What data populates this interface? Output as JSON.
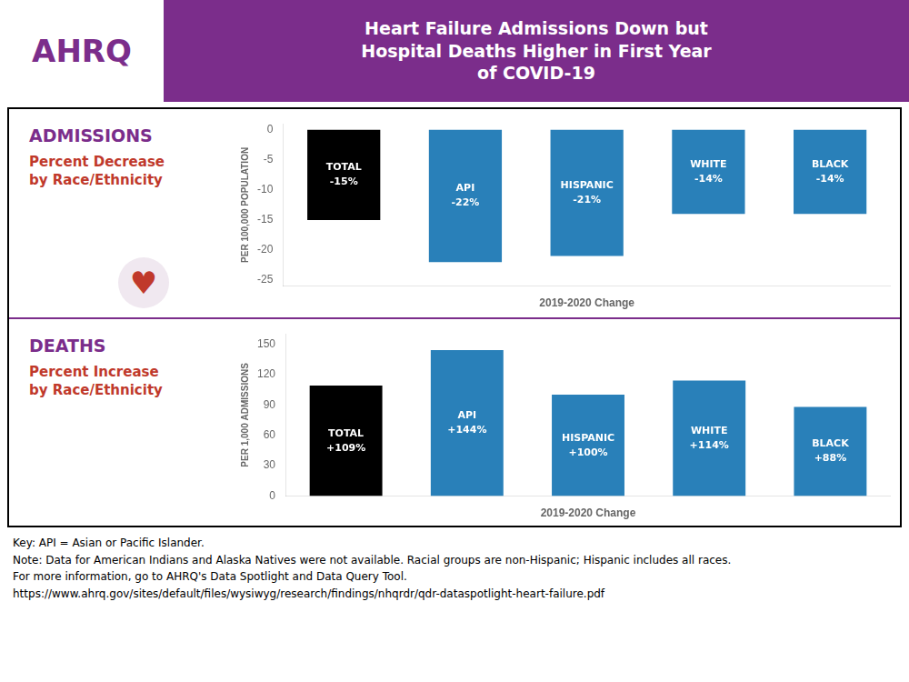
{
  "title": "Heart Failure Admissions Down but\nHospital Deaths Higher in First Year\nof COVID-19",
  "annotations": [
    "AHRQ",
    "♥",
    "Key: API = Asian or Pacific Islander.",
    "Note: Data for American Indians and Alaska Natives were not available. Racial groups are non-Hispanic; Hispanic includes all races.",
    "For more information, go to AHRQ's Data Spotlight and Data Query Tool.",
    "https://www.ahrq.gov/sites/default/files/wysiwyg/research/findings/nhqrdr/qdr-dataspotlight-heart-failure.pdf"
  ],
  "chart_data": [
    {
      "type": "bar",
      "title": "ADMISSIONS",
      "subtitle": [
        "Percent Decrease",
        "by Race/Ethnicity"
      ],
      "categories": [
        "TOTAL",
        "API",
        "HISPANIC",
        "WHITE",
        "BLACK"
      ],
      "values": [
        -15,
        -22,
        -21,
        -14,
        -14
      ],
      "value_labels": [
        "-15%",
        "-22%",
        "-21%",
        "-14%",
        "-14%"
      ],
      "colors": [
        "#000000",
        "#2980B9",
        "#2980B9",
        "#2980B9",
        "#2980B9"
      ],
      "xlabel": "2019-2020 Change",
      "ylabel": "PER 100,000 POPULATION",
      "ylim": [
        -26,
        1
      ],
      "yticks": [
        0,
        -5,
        -10,
        -15,
        -20,
        -25
      ],
      "grid": false,
      "data_labels": true,
      "tick_labels": "y"
    },
    {
      "type": "bar",
      "title": "DEATHS",
      "subtitle": [
        "Percent Increase",
        "by Race/Ethnicity"
      ],
      "categories": [
        "TOTAL",
        "API",
        "HISPANIC",
        "WHITE",
        "BLACK"
      ],
      "values": [
        109,
        144,
        100,
        114,
        88
      ],
      "value_labels": [
        "+109%",
        "+144%",
        "+100%",
        "+114%",
        "+88%"
      ],
      "colors": [
        "#000000",
        "#2980B9",
        "#2980B9",
        "#2980B9",
        "#2980B9"
      ],
      "xlabel": "2019-2020 Change",
      "ylabel": "PER 1,000 ADMISSIONS",
      "ylim": [
        0,
        160
      ],
      "yticks": [
        0,
        30,
        60,
        90,
        120,
        150
      ],
      "grid": false,
      "data_labels": true,
      "tick_labels": "y"
    }
  ]
}
